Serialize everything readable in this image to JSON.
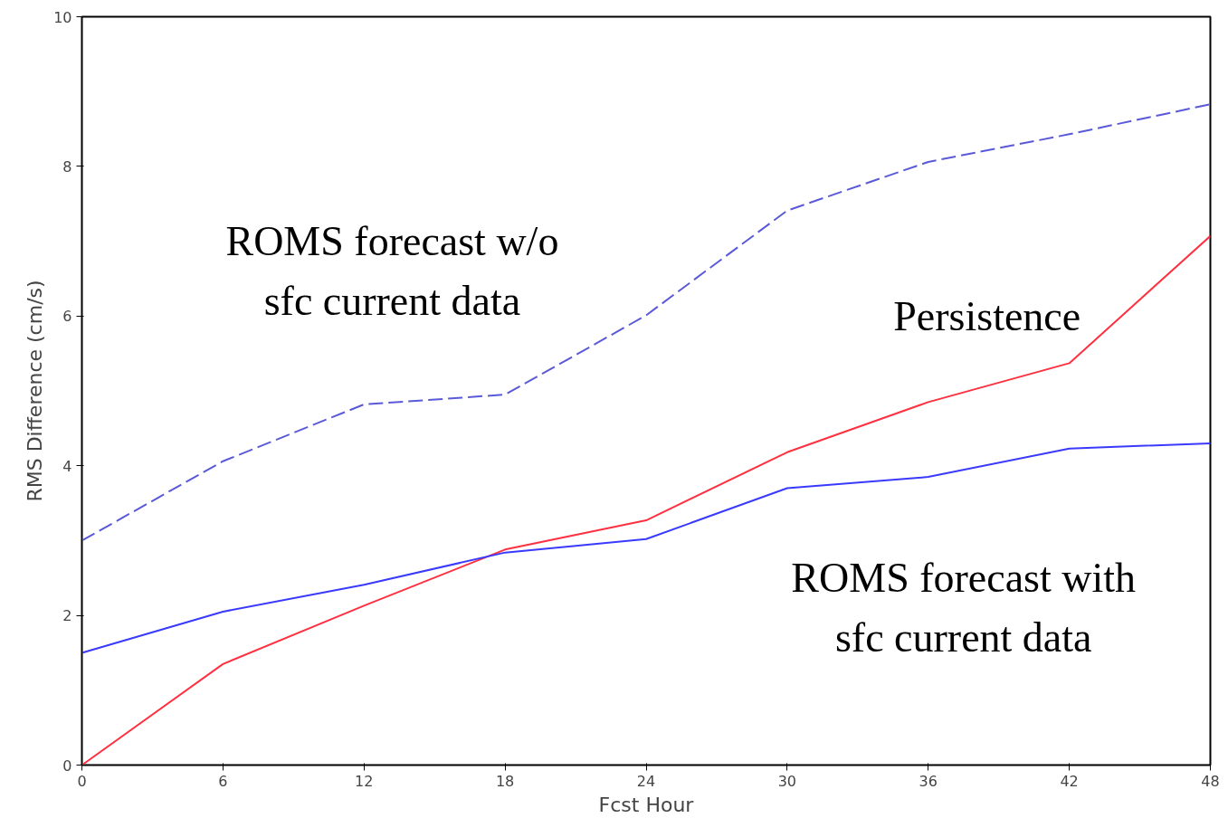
{
  "chart_data": {
    "type": "line",
    "xlabel": "Fcst Hour",
    "ylabel": "RMS Difference (cm/s)",
    "x": [
      0,
      6,
      12,
      18,
      24,
      30,
      36,
      42,
      48
    ],
    "series": [
      {
        "name": "ROMS forecast w/o\nsfc current data",
        "color": "#5a5ad8",
        "line_style": "dashed",
        "values": [
          3.0,
          4.06,
          4.82,
          4.95,
          6.01,
          7.41,
          8.06,
          8.43,
          8.83
        ]
      },
      {
        "name": "Persistence",
        "color": "#ff3040",
        "line_style": "solid",
        "values": [
          0,
          1.35,
          2.13,
          2.88,
          3.27,
          4.18,
          4.85,
          5.37,
          7.07
        ]
      },
      {
        "name": "ROMS forecast with\nsfc current data",
        "color": "#3a3aff",
        "line_style": "solid",
        "values": [
          1.5,
          2.05,
          2.41,
          2.84,
          3.02,
          3.7,
          3.85,
          4.23,
          4.3
        ]
      }
    ],
    "xlim": [
      0,
      48
    ],
    "ylim": [
      0,
      10
    ],
    "xticks": [
      0,
      6,
      12,
      18,
      24,
      30,
      36,
      42,
      48
    ],
    "yticks": [
      0,
      2,
      4,
      6,
      8,
      10
    ],
    "grid": false,
    "legend": false,
    "marker": "none"
  }
}
